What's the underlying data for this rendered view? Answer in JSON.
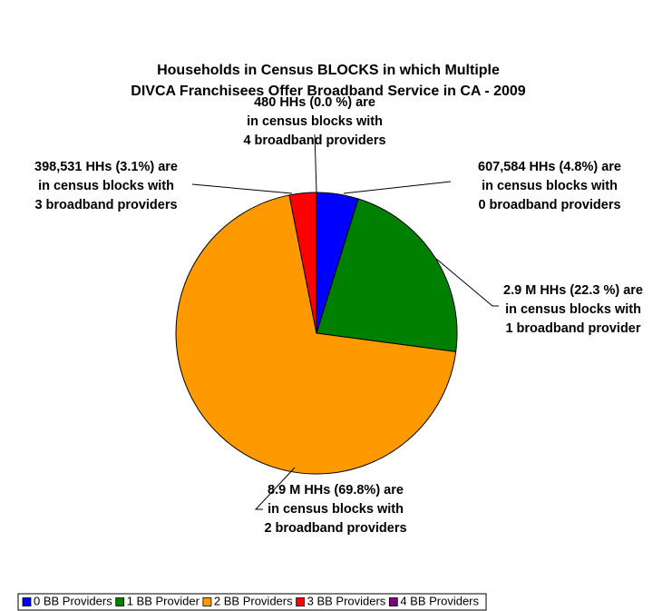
{
  "chart_data": {
    "type": "pie",
    "title": [
      "Households in Census BLOCKS in which Multiple",
      "DIVCA Franchisees Offer Broadband Service in CA - 2009"
    ],
    "categories": [
      "0 BB Providers",
      "1 BB Provider",
      "2 BB Providers",
      "3 BB Providers",
      "4 BB Providers"
    ],
    "values": [
      4.8,
      22.3,
      69.8,
      3.1,
      0.0
    ],
    "value_labels": [
      [
        "607,584 HHs (4.8%) are",
        "in census blocks with",
        "0 broadband providers"
      ],
      [
        "2.9 M HHs (22.3 %) are",
        "in census blocks with",
        "1 broadband provider"
      ],
      [
        "8.9 M HHs (69.8%) are",
        "in census blocks with",
        "2 broadband providers"
      ],
      [
        "398,531 HHs (3.1%) are",
        "in census blocks with",
        "3 broadband providers"
      ],
      [
        "480 HHs (0.0 %) are",
        "in census blocks with",
        "4 broadband providers"
      ]
    ],
    "colors": [
      "#0000ff",
      "#008000",
      "#ff9900",
      "#ff0000",
      "#800080"
    ],
    "legend": "bottom"
  }
}
